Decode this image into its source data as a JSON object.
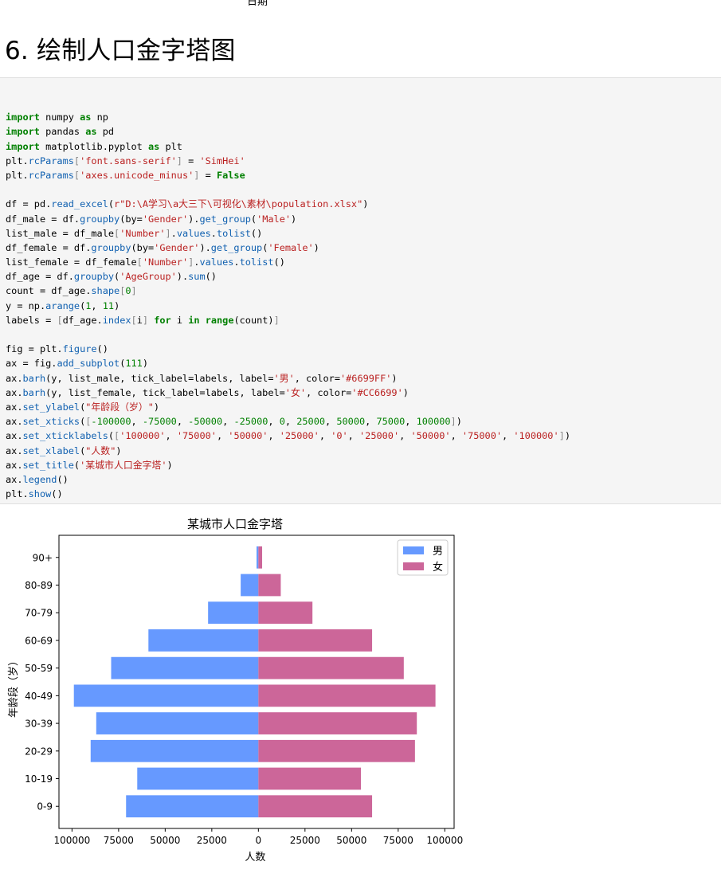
{
  "previous_output": {
    "xlabel": "日期"
  },
  "section": {
    "title": "6. 绘制人口金字塔图"
  },
  "code_cell": {
    "lines": [
      [],
      [
        [
          "kw",
          "import"
        ],
        [
          "txt",
          " numpy "
        ],
        [
          "kw",
          "as"
        ],
        [
          "txt",
          " np"
        ]
      ],
      [
        [
          "kw",
          "import"
        ],
        [
          "txt",
          " pandas "
        ],
        [
          "kw",
          "as"
        ],
        [
          "txt",
          " pd"
        ]
      ],
      [
        [
          "kw",
          "import"
        ],
        [
          "txt",
          " matplotlib.pyplot "
        ],
        [
          "kw",
          "as"
        ],
        [
          "txt",
          " plt"
        ]
      ],
      [
        [
          "txt",
          "plt."
        ],
        [
          "fn",
          "rcParams"
        ],
        [
          "punc",
          "["
        ],
        [
          "str",
          "'font.sans-serif'"
        ],
        [
          "punc",
          "]"
        ],
        [
          "txt",
          " = "
        ],
        [
          "str",
          "'SimHei'"
        ]
      ],
      [
        [
          "txt",
          "plt."
        ],
        [
          "fn",
          "rcParams"
        ],
        [
          "punc",
          "["
        ],
        [
          "str",
          "'axes.unicode_minus'"
        ],
        [
          "punc",
          "]"
        ],
        [
          "txt",
          " = "
        ],
        [
          "kw",
          "False"
        ]
      ],
      [],
      [
        [
          "txt",
          "df = pd."
        ],
        [
          "fn",
          "read_excel"
        ],
        [
          "txt",
          "("
        ],
        [
          "str",
          "r\"D:\\A学习\\a大三下\\可视化\\素材\\population.xlsx\""
        ],
        [
          "txt",
          ")"
        ]
      ],
      [
        [
          "txt",
          "df_male = df."
        ],
        [
          "fn",
          "groupby"
        ],
        [
          "txt",
          "(by="
        ],
        [
          "str",
          "'Gender'"
        ],
        [
          "txt",
          ")."
        ],
        [
          "fn",
          "get_group"
        ],
        [
          "txt",
          "("
        ],
        [
          "str",
          "'Male'"
        ],
        [
          "txt",
          ")"
        ]
      ],
      [
        [
          "txt",
          "list_male = df_male"
        ],
        [
          "punc",
          "["
        ],
        [
          "str",
          "'Number'"
        ],
        [
          "punc",
          "]"
        ],
        [
          "txt",
          "."
        ],
        [
          "fn",
          "values"
        ],
        [
          "txt",
          "."
        ],
        [
          "fn",
          "tolist"
        ],
        [
          "txt",
          "()"
        ]
      ],
      [
        [
          "txt",
          "df_female = df."
        ],
        [
          "fn",
          "groupby"
        ],
        [
          "txt",
          "(by="
        ],
        [
          "str",
          "'Gender'"
        ],
        [
          "txt",
          ")."
        ],
        [
          "fn",
          "get_group"
        ],
        [
          "txt",
          "("
        ],
        [
          "str",
          "'Female'"
        ],
        [
          "txt",
          ")"
        ]
      ],
      [
        [
          "txt",
          "list_female = df_female"
        ],
        [
          "punc",
          "["
        ],
        [
          "str",
          "'Number'"
        ],
        [
          "punc",
          "]"
        ],
        [
          "txt",
          "."
        ],
        [
          "fn",
          "values"
        ],
        [
          "txt",
          "."
        ],
        [
          "fn",
          "tolist"
        ],
        [
          "txt",
          "()"
        ]
      ],
      [
        [
          "txt",
          "df_age = df."
        ],
        [
          "fn",
          "groupby"
        ],
        [
          "txt",
          "("
        ],
        [
          "str",
          "'AgeGroup'"
        ],
        [
          "txt",
          ")."
        ],
        [
          "fn",
          "sum"
        ],
        [
          "txt",
          "()"
        ]
      ],
      [
        [
          "txt",
          "count = df_age."
        ],
        [
          "fn",
          "shape"
        ],
        [
          "punc",
          "["
        ],
        [
          "num",
          "0"
        ],
        [
          "punc",
          "]"
        ]
      ],
      [
        [
          "txt",
          "y = np."
        ],
        [
          "fn",
          "arange"
        ],
        [
          "txt",
          "("
        ],
        [
          "num",
          "1"
        ],
        [
          "txt",
          ", "
        ],
        [
          "num",
          "11"
        ],
        [
          "txt",
          ")"
        ]
      ],
      [
        [
          "txt",
          "labels = "
        ],
        [
          "punc",
          "["
        ],
        [
          "txt",
          "df_age."
        ],
        [
          "fn",
          "index"
        ],
        [
          "punc",
          "["
        ],
        [
          "txt",
          "i"
        ],
        [
          "punc",
          "]"
        ],
        [
          "txt",
          " "
        ],
        [
          "kw",
          "for"
        ],
        [
          "txt",
          " i "
        ],
        [
          "kw",
          "in"
        ],
        [
          "txt",
          " "
        ],
        [
          "kw",
          "range"
        ],
        [
          "txt",
          "(count)"
        ],
        [
          "punc",
          "]"
        ]
      ],
      [],
      [
        [
          "txt",
          "fig = plt."
        ],
        [
          "fn",
          "figure"
        ],
        [
          "txt",
          "()"
        ]
      ],
      [
        [
          "txt",
          "ax = fig."
        ],
        [
          "fn",
          "add_subplot"
        ],
        [
          "txt",
          "("
        ],
        [
          "num",
          "111"
        ],
        [
          "txt",
          ")"
        ]
      ],
      [
        [
          "txt",
          "ax."
        ],
        [
          "fn",
          "barh"
        ],
        [
          "txt",
          "(y, list_male, tick_label=labels, label="
        ],
        [
          "str",
          "'男'"
        ],
        [
          "txt",
          ", color="
        ],
        [
          "str",
          "'#6699FF'"
        ],
        [
          "txt",
          ")"
        ]
      ],
      [
        [
          "txt",
          "ax."
        ],
        [
          "fn",
          "barh"
        ],
        [
          "txt",
          "(y, list_female, tick_label=labels, label="
        ],
        [
          "str",
          "'女'"
        ],
        [
          "txt",
          ", color="
        ],
        [
          "str",
          "'#CC6699'"
        ],
        [
          "txt",
          ")"
        ]
      ],
      [
        [
          "txt",
          "ax."
        ],
        [
          "fn",
          "set_ylabel"
        ],
        [
          "txt",
          "("
        ],
        [
          "str",
          "\"年龄段（岁）\""
        ],
        [
          "txt",
          ")"
        ]
      ],
      [
        [
          "txt",
          "ax."
        ],
        [
          "fn",
          "set_xticks"
        ],
        [
          "txt",
          "("
        ],
        [
          "punc",
          "["
        ],
        [
          "num",
          "-100000"
        ],
        [
          "txt",
          ", "
        ],
        [
          "num",
          "-75000"
        ],
        [
          "txt",
          ", "
        ],
        [
          "num",
          "-50000"
        ],
        [
          "txt",
          ", "
        ],
        [
          "num",
          "-25000"
        ],
        [
          "txt",
          ", "
        ],
        [
          "num",
          "0"
        ],
        [
          "txt",
          ", "
        ],
        [
          "num",
          "25000"
        ],
        [
          "txt",
          ", "
        ],
        [
          "num",
          "50000"
        ],
        [
          "txt",
          ", "
        ],
        [
          "num",
          "75000"
        ],
        [
          "txt",
          ", "
        ],
        [
          "num",
          "100000"
        ],
        [
          "punc",
          "]"
        ],
        [
          "txt",
          ")"
        ]
      ],
      [
        [
          "txt",
          "ax."
        ],
        [
          "fn",
          "set_xticklabels"
        ],
        [
          "txt",
          "("
        ],
        [
          "punc",
          "["
        ],
        [
          "str",
          "'100000'"
        ],
        [
          "txt",
          ", "
        ],
        [
          "str",
          "'75000'"
        ],
        [
          "txt",
          ", "
        ],
        [
          "str",
          "'50000'"
        ],
        [
          "txt",
          ", "
        ],
        [
          "str",
          "'25000'"
        ],
        [
          "txt",
          ", "
        ],
        [
          "str",
          "'0'"
        ],
        [
          "txt",
          ", "
        ],
        [
          "str",
          "'25000'"
        ],
        [
          "txt",
          ", "
        ],
        [
          "str",
          "'50000'"
        ],
        [
          "txt",
          ", "
        ],
        [
          "str",
          "'75000'"
        ],
        [
          "txt",
          ", "
        ],
        [
          "str",
          "'100000'"
        ],
        [
          "punc",
          "]"
        ],
        [
          "txt",
          ")"
        ]
      ],
      [
        [
          "txt",
          "ax."
        ],
        [
          "fn",
          "set_xlabel"
        ],
        [
          "txt",
          "("
        ],
        [
          "str",
          "\"人数\""
        ],
        [
          "txt",
          ")"
        ]
      ],
      [
        [
          "txt",
          "ax."
        ],
        [
          "fn",
          "set_title"
        ],
        [
          "txt",
          "("
        ],
        [
          "str",
          "'某城市人口金字塔'"
        ],
        [
          "txt",
          ")"
        ]
      ],
      [
        [
          "txt",
          "ax."
        ],
        [
          "fn",
          "legend"
        ],
        [
          "txt",
          "()"
        ]
      ],
      [
        [
          "txt",
          "plt."
        ],
        [
          "fn",
          "show"
        ],
        [
          "txt",
          "()"
        ]
      ]
    ]
  },
  "chart_data": {
    "type": "bar",
    "orientation": "horizontal",
    "title": "某城市人口金字塔",
    "xlabel": "人数",
    "ylabel": "年龄段（岁）",
    "categories": [
      "0-9",
      "10-19",
      "20-29",
      "30-39",
      "40-49",
      "50-59",
      "60-69",
      "70-79",
      "80-89",
      "90+"
    ],
    "series": [
      {
        "name": "男",
        "color": "#6699FF",
        "values": [
          -71000,
          -65000,
          -90000,
          -87000,
          -99000,
          -79000,
          -59000,
          -27000,
          -9500,
          -1000
        ]
      },
      {
        "name": "女",
        "color": "#CC6699",
        "values": [
          61000,
          55000,
          84000,
          85000,
          95000,
          78000,
          61000,
          29000,
          12000,
          2000
        ]
      }
    ],
    "xlim": [
      -107000,
      105000
    ],
    "xticks": [
      -100000,
      -75000,
      -50000,
      -25000,
      0,
      25000,
      50000,
      75000,
      100000
    ],
    "xticklabels": [
      "100000",
      "75000",
      "50000",
      "25000",
      "0",
      "25000",
      "50000",
      "75000",
      "100000"
    ],
    "grid": false,
    "legend": "upper right"
  }
}
